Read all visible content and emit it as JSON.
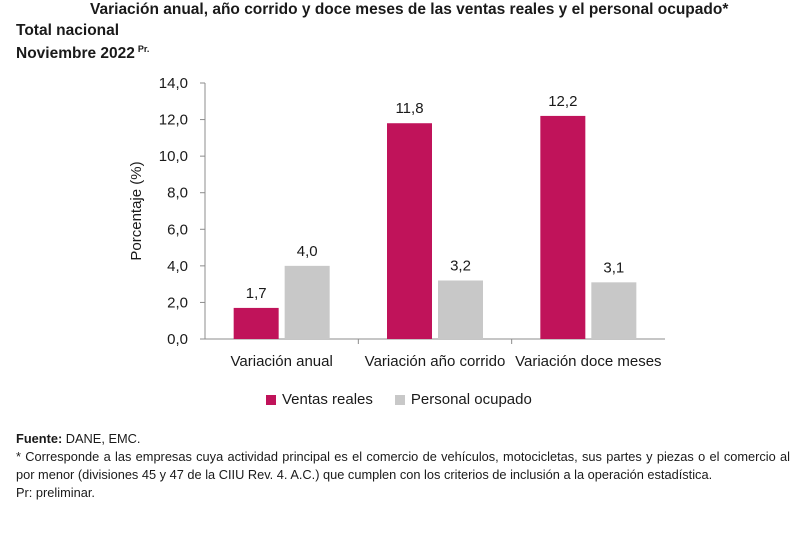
{
  "header": {
    "title": "Variación anual, año corrido y doce meses de las ventas reales y el personal ocupado*",
    "subtitle": "Total nacional",
    "period": "Noviembre 2022",
    "period_mark": "Pr."
  },
  "colors": {
    "ventas": "#C0135A",
    "personal": "#C8C8C8"
  },
  "chart_data": {
    "type": "bar",
    "categories": [
      "Variación anual",
      "Variación año corrido",
      "Variación doce meses"
    ],
    "series": [
      {
        "name": "Ventas reales",
        "values": [
          1.7,
          11.8,
          12.2
        ],
        "labels": [
          "1,7",
          "11,8",
          "12,2"
        ]
      },
      {
        "name": "Personal ocupado",
        "values": [
          4.0,
          3.2,
          3.1
        ],
        "labels": [
          "4,0",
          "3,2",
          "3,1"
        ]
      }
    ],
    "ylabel": "Porcentaje (%)",
    "ylim": [
      0,
      14
    ],
    "yticks": [
      0,
      2,
      4,
      6,
      8,
      10,
      12,
      14
    ],
    "ytick_labels": [
      "0,0",
      "2,0",
      "4,0",
      "6,0",
      "8,0",
      "10,0",
      "12,0",
      "14,0"
    ],
    "legend_position": "bottom"
  },
  "notes": {
    "source_label": "Fuente:",
    "source_text": "DANE, EMC.",
    "footnote": "* Corresponde a las empresas cuya actividad principal es el comercio de vehículos, motocicletas, sus partes y piezas o el comercio al por menor (divisiones 45 y 47 de la CIIU Rev. 4. A.C.) que cumplen con los criterios de inclusión a la operación estadística.",
    "preliminary": "Pr: preliminar."
  }
}
